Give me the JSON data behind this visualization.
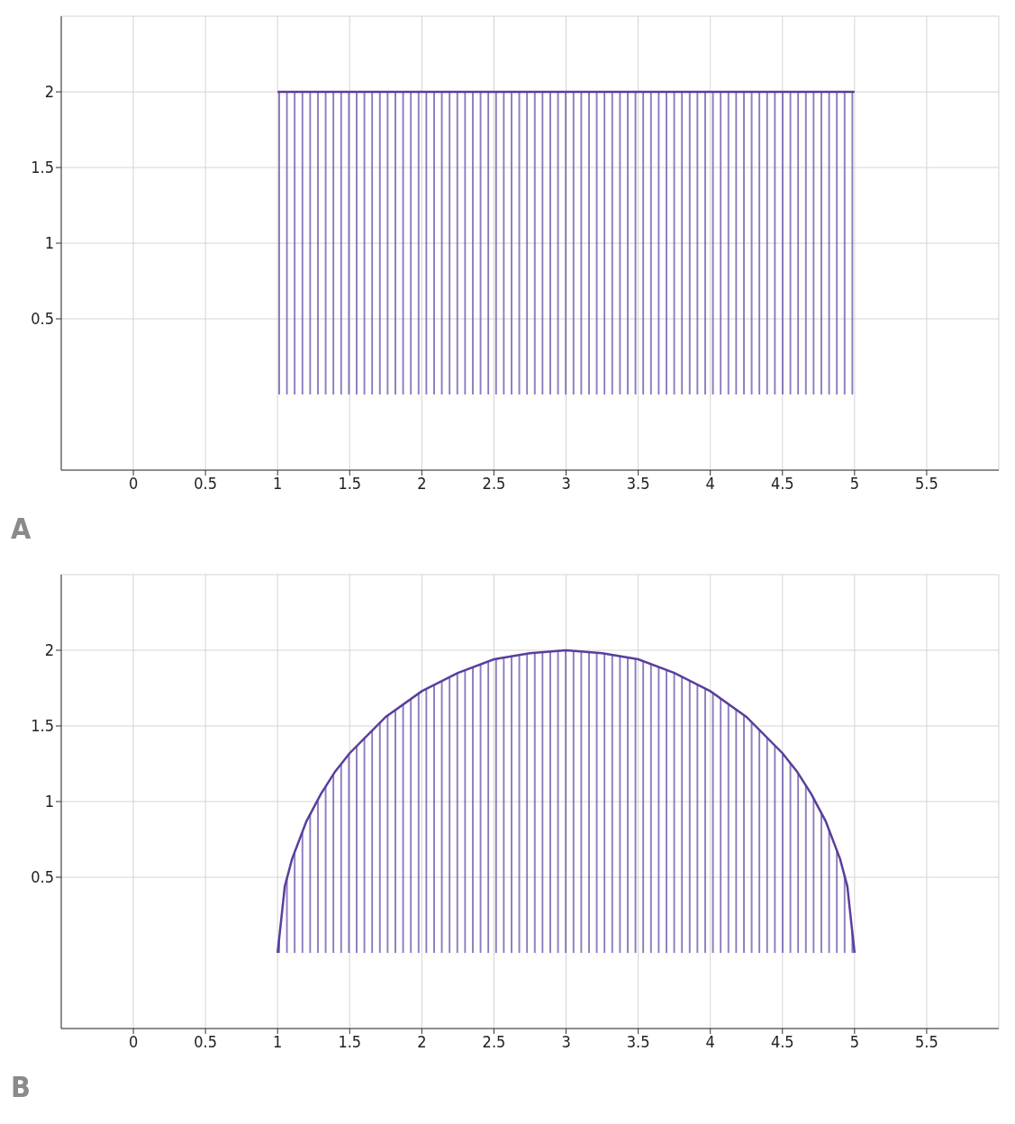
{
  "chart_data": [
    {
      "type": "area",
      "title": "A",
      "x": [
        1,
        5
      ],
      "series": [
        {
          "color": "#5a3d9e",
          "values": [
            2,
            2
          ]
        }
      ],
      "xlim": [
        -0.5,
        6.0
      ],
      "ylim": [
        -0.5,
        2.5
      ],
      "xticks": [
        0,
        0.5,
        1,
        1.5,
        2,
        2.5,
        3,
        3.5,
        4,
        4.5,
        5,
        5.5
      ],
      "yticks": [
        0.5,
        1,
        1.5,
        2
      ],
      "grid": true,
      "legend": false
    },
    {
      "type": "area",
      "title": "B",
      "x": [
        1,
        1.05,
        1.1,
        1.2,
        1.3,
        1.4,
        1.5,
        1.75,
        2,
        2.25,
        2.5,
        2.75,
        3,
        3.25,
        3.5,
        3.75,
        4,
        4.25,
        4.5,
        4.6,
        4.7,
        4.8,
        4.9,
        4.95,
        5
      ],
      "series": [
        {
          "color": "#5a3d9e",
          "values": [
            0,
            0.44,
            0.62,
            0.87,
            1.05,
            1.2,
            1.32,
            1.56,
            1.73,
            1.85,
            1.94,
            1.98,
            2,
            1.98,
            1.94,
            1.85,
            1.73,
            1.56,
            1.32,
            1.2,
            1.05,
            0.87,
            0.62,
            0.44,
            0
          ]
        }
      ],
      "xlim": [
        -0.5,
        6.0
      ],
      "ylim": [
        -0.5,
        2.5
      ],
      "xticks": [
        0,
        0.5,
        1,
        1.5,
        2,
        2.5,
        3,
        3.5,
        4,
        4.5,
        5,
        5.5
      ],
      "yticks": [
        0.5,
        1,
        1.5,
        2
      ],
      "grid": true,
      "legend": false
    }
  ]
}
